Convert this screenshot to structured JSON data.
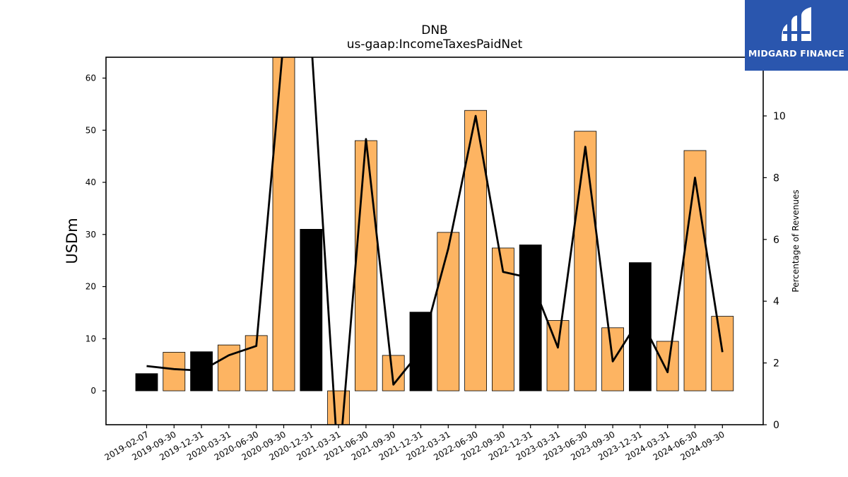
{
  "brand": {
    "name": "MIDGARD FINANCE",
    "color": "#2a56ae"
  },
  "chart_data": {
    "type": "bar",
    "title": "DNB",
    "subtitle": "us-gaap:IncomeTaxesPaidNet",
    "ylabel": "USDm",
    "y2label": "Percentage of Revenues",
    "ylim": [
      -6.5,
      64
    ],
    "y2lim": [
      0,
      11.9
    ],
    "yticks": [
      0,
      10,
      20,
      30,
      40,
      50,
      60
    ],
    "y2ticks": [
      0,
      2,
      4,
      6,
      8,
      10
    ],
    "categories": [
      "2019-02-07",
      "2019-09-30",
      "2019-12-31",
      "2020-03-31",
      "2020-06-30",
      "2020-09-30",
      "2020-12-31",
      "2021-03-31",
      "2021-06-30",
      "2021-09-30",
      "2021-12-31",
      "2022-03-31",
      "2022-06-30",
      "2022-09-30",
      "2022-12-31",
      "2023-03-31",
      "2023-06-30",
      "2023-09-30",
      "2023-12-31",
      "2024-03-31",
      "2024-06-30",
      "2024-09-30"
    ],
    "series": [
      {
        "kind": "bar",
        "axis": "left",
        "values": [
          3.3,
          7.4,
          7.5,
          8.8,
          10.6,
          68.0,
          31.0,
          -6.8,
          48.0,
          6.8,
          15.1,
          30.4,
          53.8,
          27.4,
          28.0,
          13.5,
          49.8,
          12.1,
          24.6,
          9.5,
          46.1,
          14.3
        ],
        "colors": [
          "#000000",
          "#fdb462",
          "#000000",
          "#fdb462",
          "#fdb462",
          "#fdb462",
          "#000000",
          "#fdb462",
          "#fdb462",
          "#fdb462",
          "#000000",
          "#fdb462",
          "#fdb462",
          "#fdb462",
          "#000000",
          "#fdb462",
          "#fdb462",
          "#fdb462",
          "#000000",
          "#fdb462",
          "#fdb462",
          "#fdb462"
        ]
      },
      {
        "kind": "line",
        "axis": "right",
        "color": "#000000",
        "values": [
          1.9,
          1.8,
          1.75,
          2.25,
          2.55,
          12.5,
          12.5,
          -1.5,
          9.25,
          1.3,
          2.4,
          5.7,
          10.0,
          4.95,
          4.75,
          2.5,
          9.0,
          2.05,
          3.45,
          1.7,
          8.0,
          2.35
        ]
      }
    ],
    "colors": {
      "bar_q4": "#000000",
      "bar_other": "#fdb462",
      "line": "#000000"
    },
    "grid": false,
    "legend": "none"
  }
}
